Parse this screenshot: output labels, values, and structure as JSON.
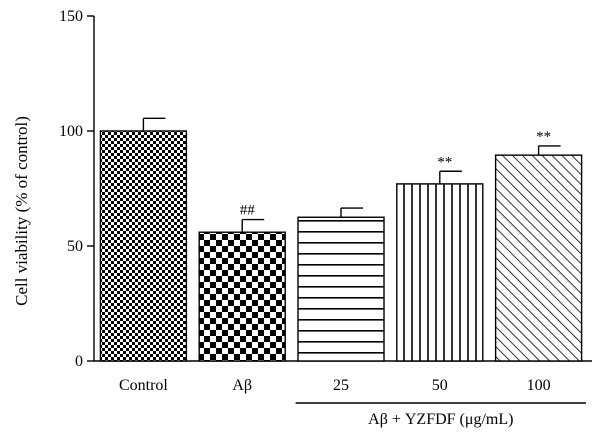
{
  "chart_data": {
    "type": "bar",
    "ylabel": "Cell viability (% of control)",
    "ylim": [
      0,
      150
    ],
    "yticks": [
      0,
      50,
      100,
      150
    ],
    "categories": [
      "Control",
      "Aβ",
      "25",
      "50",
      "100"
    ],
    "values": [
      100,
      56,
      62.5,
      77,
      89.5
    ],
    "errors": [
      5.5,
      5.5,
      4,
      5.5,
      4
    ],
    "significance": [
      "",
      "##",
      "",
      "**",
      "**"
    ],
    "patterns": [
      "checker-fine",
      "checker-coarse",
      "horizontal-lines",
      "vertical-lines",
      "diagonal-lines"
    ],
    "group_label": "Aβ + YZFDF (μg/mL)",
    "grid": false,
    "colors": {
      "ink": "#000000",
      "background": "#ffffff"
    }
  }
}
